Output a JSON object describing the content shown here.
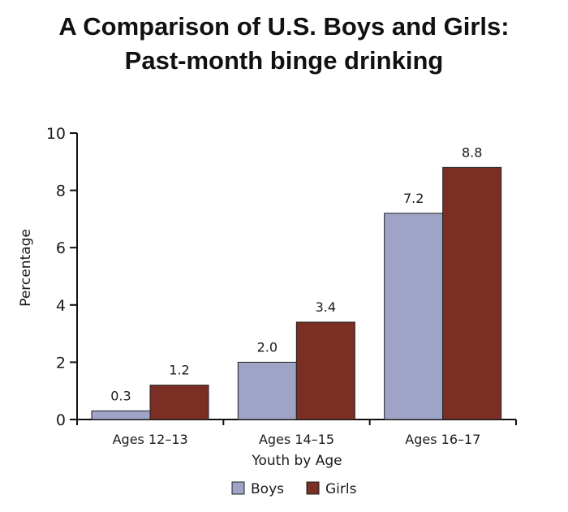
{
  "chart_data": {
    "type": "bar",
    "title_line1": "A Comparison of U.S. Boys and Girls:",
    "title_line2": "Past-month binge drinking",
    "categories": [
      "Ages 12–13",
      "Ages 14–15",
      "Ages 16–17"
    ],
    "series": [
      {
        "name": "Boys",
        "values": [
          0.3,
          2.0,
          7.2
        ],
        "labels": [
          "0.3",
          "2.0",
          "7.2"
        ],
        "color": "#9fa3c6"
      },
      {
        "name": "Girls",
        "values": [
          1.2,
          3.4,
          8.8
        ],
        "labels": [
          "1.2",
          "3.4",
          "8.8"
        ],
        "color": "#7b2e24"
      }
    ],
    "xlabel": "Youth by Age",
    "ylabel": "Percentage",
    "ylim": [
      0,
      10
    ],
    "yticks": [
      "0",
      "2",
      "4",
      "6",
      "8",
      "10"
    ],
    "legend_position": "bottom",
    "grid": false
  }
}
